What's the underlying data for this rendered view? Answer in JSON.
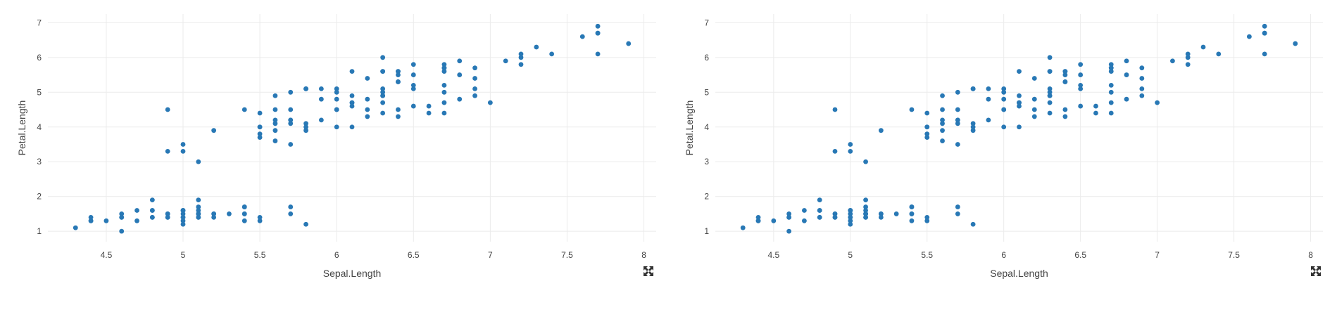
{
  "chart_data": [
    {
      "type": "scatter",
      "xlabel": "Sepal.Length",
      "ylabel": "Petal.Length",
      "xlim": [
        4.12,
        8.08
      ],
      "ylim": [
        0.7,
        7.25
      ],
      "xticks": [
        4.5,
        5,
        5.5,
        6,
        6.5,
        7,
        7.5,
        8
      ],
      "yticks": [
        1,
        2,
        3,
        4,
        5,
        6,
        7
      ],
      "grid": true,
      "color": "#2878b5",
      "x": [
        5.1,
        4.9,
        4.7,
        4.6,
        5.0,
        5.4,
        4.6,
        5.0,
        4.4,
        4.9,
        5.4,
        4.8,
        4.8,
        4.3,
        5.8,
        5.7,
        5.4,
        5.1,
        5.7,
        5.1,
        5.4,
        5.1,
        4.6,
        5.1,
        4.8,
        5.0,
        5.0,
        5.2,
        5.2,
        4.7,
        4.8,
        5.4,
        5.2,
        5.5,
        4.9,
        5.0,
        5.5,
        4.9,
        4.4,
        5.1,
        5.0,
        4.5,
        4.4,
        5.0,
        5.1,
        4.8,
        5.1,
        4.6,
        5.3,
        5.0,
        7.0,
        6.4,
        6.9,
        5.5,
        6.5,
        5.7,
        6.3,
        4.9,
        6.6,
        5.2,
        5.0,
        5.9,
        6.0,
        6.1,
        5.6,
        6.7,
        5.6,
        5.8,
        6.2,
        5.6,
        5.9,
        6.1,
        6.3,
        6.1,
        6.4,
        6.6,
        6.8,
        6.7,
        6.0,
        5.7,
        5.5,
        5.5,
        5.8,
        6.0,
        5.4,
        6.0,
        6.7,
        6.3,
        5.6,
        5.5,
        5.5,
        6.1,
        5.8,
        5.0,
        5.6,
        5.7,
        5.7,
        6.2,
        5.1,
        5.7,
        6.3,
        5.8,
        7.1,
        6.3,
        6.5,
        7.6,
        4.9,
        7.3,
        6.7,
        7.2,
        6.5,
        6.4,
        6.8,
        5.7,
        5.8,
        6.4,
        6.5,
        7.7,
        7.7,
        6.0,
        6.9,
        5.6,
        7.7,
        6.3,
        6.7,
        7.2,
        6.2,
        6.1,
        6.4,
        7.2,
        7.4,
        7.9,
        6.4,
        6.3,
        6.1,
        7.7,
        6.3,
        6.4,
        6.0,
        6.9,
        6.7,
        6.9,
        5.8,
        6.8,
        6.7,
        6.7,
        6.3,
        6.5,
        6.2,
        5.9
      ],
      "y": [
        1.4,
        1.4,
        1.3,
        1.5,
        1.4,
        1.7,
        1.4,
        1.5,
        1.4,
        1.5,
        1.5,
        1.6,
        1.4,
        1.1,
        1.2,
        1.5,
        1.3,
        1.4,
        1.7,
        1.5,
        1.7,
        1.5,
        1.0,
        1.7,
        1.9,
        1.6,
        1.6,
        1.5,
        1.4,
        1.6,
        1.6,
        1.5,
        1.5,
        1.4,
        1.5,
        1.2,
        1.3,
        1.4,
        1.3,
        1.5,
        1.3,
        1.3,
        1.3,
        1.6,
        1.9,
        1.4,
        1.6,
        1.4,
        1.5,
        1.4,
        4.7,
        4.5,
        4.9,
        4.0,
        4.6,
        4.5,
        4.7,
        3.3,
        4.6,
        3.9,
        3.5,
        4.2,
        4.0,
        4.7,
        3.6,
        4.4,
        4.5,
        4.1,
        4.5,
        3.9,
        4.8,
        4.0,
        4.9,
        4.7,
        4.3,
        4.4,
        4.8,
        5.0,
        4.5,
        3.5,
        3.8,
        3.7,
        3.9,
        5.1,
        4.5,
        4.5,
        4.7,
        4.4,
        4.1,
        4.0,
        4.4,
        4.6,
        4.0,
        3.3,
        4.2,
        4.2,
        4.2,
        4.3,
        3.0,
        4.1,
        6.0,
        5.1,
        5.9,
        5.6,
        5.8,
        6.6,
        4.5,
        6.3,
        5.8,
        6.1,
        5.1,
        5.3,
        5.5,
        5.0,
        5.1,
        5.3,
        5.5,
        6.7,
        6.9,
        5.0,
        5.7,
        4.9,
        6.7,
        4.9,
        5.7,
        6.0,
        4.8,
        4.9,
        5.6,
        5.8,
        6.1,
        6.4,
        5.6,
        5.1,
        5.6,
        6.1,
        5.6,
        5.5,
        4.8,
        5.4,
        5.6,
        5.1,
        5.1,
        5.9,
        5.7,
        5.2,
        5.0,
        5.2,
        5.4,
        5.1
      ]
    },
    {
      "type": "scatter",
      "xlabel": "Sepal.Length",
      "ylabel": "Petal.Length",
      "xlim": [
        4.12,
        8.08
      ],
      "ylim": [
        0.7,
        7.25
      ],
      "xticks": [
        4.5,
        5,
        5.5,
        6,
        6.5,
        7,
        7.5,
        8
      ],
      "yticks": [
        1,
        2,
        3,
        4,
        5,
        6,
        7
      ],
      "grid": true,
      "color": "#2878b5",
      "x": [
        5.1,
        4.9,
        4.7,
        4.6,
        5.0,
        5.4,
        4.6,
        5.0,
        4.4,
        4.9,
        5.4,
        4.8,
        4.8,
        4.3,
        5.8,
        5.7,
        5.4,
        5.1,
        5.7,
        5.1,
        5.4,
        5.1,
        4.6,
        5.1,
        4.8,
        5.0,
        5.0,
        5.2,
        5.2,
        4.7,
        4.8,
        5.4,
        5.2,
        5.5,
        4.9,
        5.0,
        5.5,
        4.9,
        4.4,
        5.1,
        5.0,
        4.5,
        4.4,
        5.0,
        5.1,
        4.8,
        5.1,
        4.6,
        5.3,
        5.0,
        7.0,
        6.4,
        6.9,
        5.5,
        6.5,
        5.7,
        6.3,
        4.9,
        6.6,
        5.2,
        5.0,
        5.9,
        6.0,
        6.1,
        5.6,
        6.7,
        5.6,
        5.8,
        6.2,
        5.6,
        5.9,
        6.1,
        6.3,
        6.1,
        6.4,
        6.6,
        6.8,
        6.7,
        6.0,
        5.7,
        5.5,
        5.5,
        5.8,
        6.0,
        5.4,
        6.0,
        6.7,
        6.3,
        5.6,
        5.5,
        5.5,
        6.1,
        5.8,
        5.0,
        5.6,
        5.7,
        5.7,
        6.2,
        5.1,
        5.7,
        6.3,
        5.8,
        7.1,
        6.3,
        6.5,
        7.6,
        4.9,
        7.3,
        6.7,
        7.2,
        6.5,
        6.4,
        6.8,
        5.7,
        5.8,
        6.4,
        6.5,
        7.7,
        7.7,
        6.0,
        6.9,
        5.6,
        7.7,
        6.3,
        6.7,
        7.2,
        6.2,
        6.1,
        6.4,
        7.2,
        7.4,
        7.9,
        6.4,
        6.3,
        6.1,
        7.7,
        6.3,
        6.4,
        6.0,
        6.9,
        6.7,
        6.9,
        5.8,
        6.8,
        6.7,
        6.7,
        6.3,
        6.5,
        6.2,
        5.9
      ],
      "y": [
        1.4,
        1.4,
        1.3,
        1.5,
        1.4,
        1.7,
        1.4,
        1.5,
        1.4,
        1.5,
        1.5,
        1.6,
        1.4,
        1.1,
        1.2,
        1.5,
        1.3,
        1.4,
        1.7,
        1.5,
        1.7,
        1.5,
        1.0,
        1.7,
        1.9,
        1.6,
        1.6,
        1.5,
        1.4,
        1.6,
        1.6,
        1.5,
        1.5,
        1.4,
        1.5,
        1.2,
        1.3,
        1.4,
        1.3,
        1.5,
        1.3,
        1.3,
        1.3,
        1.6,
        1.9,
        1.4,
        1.6,
        1.4,
        1.5,
        1.4,
        4.7,
        4.5,
        4.9,
        4.0,
        4.6,
        4.5,
        4.7,
        3.3,
        4.6,
        3.9,
        3.5,
        4.2,
        4.0,
        4.7,
        3.6,
        4.4,
        4.5,
        4.1,
        4.5,
        3.9,
        4.8,
        4.0,
        4.9,
        4.7,
        4.3,
        4.4,
        4.8,
        5.0,
        4.5,
        3.5,
        3.8,
        3.7,
        3.9,
        5.1,
        4.5,
        4.5,
        4.7,
        4.4,
        4.1,
        4.0,
        4.4,
        4.6,
        4.0,
        3.3,
        4.2,
        4.2,
        4.2,
        4.3,
        3.0,
        4.1,
        6.0,
        5.1,
        5.9,
        5.6,
        5.8,
        6.6,
        4.5,
        6.3,
        5.8,
        6.1,
        5.1,
        5.3,
        5.5,
        5.0,
        5.1,
        5.3,
        5.5,
        6.7,
        6.9,
        5.0,
        5.7,
        4.9,
        6.7,
        4.9,
        5.7,
        6.0,
        4.8,
        4.9,
        5.6,
        5.8,
        6.1,
        6.4,
        5.6,
        5.1,
        5.6,
        6.1,
        5.6,
        5.5,
        4.8,
        5.4,
        5.6,
        5.1,
        5.1,
        5.9,
        5.7,
        5.2,
        5.0,
        5.2,
        5.4,
        5.1
      ]
    }
  ]
}
